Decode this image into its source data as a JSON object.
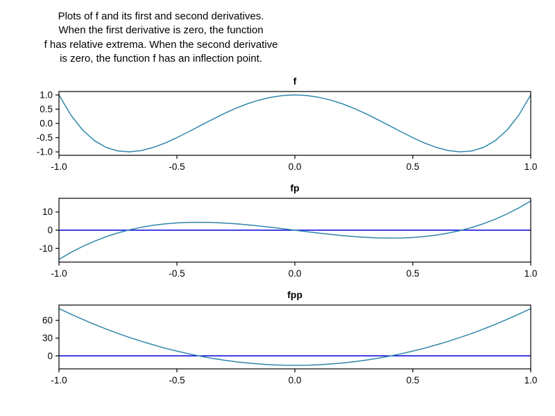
{
  "caption": {
    "lines": [
      "Plots of f and its first and second derivatives.",
      "When the first derivative is zero, the function",
      "f has relative extrema. When the second derivative",
      "is zero, the function f has an inflection point."
    ]
  },
  "colors": {
    "curve": "#2e86ab",
    "zero_line": "#0000dd",
    "frame": "#000000",
    "background": "#ffffff"
  },
  "chart_data": [
    {
      "type": "line",
      "title": "f",
      "xlabel": "",
      "ylabel": "",
      "legend": "none",
      "grid": false,
      "xlim": [
        -1,
        1
      ],
      "ylim": [
        -1.12,
        1.12
      ],
      "xticks": [
        -1,
        -0.5,
        0,
        0.5,
        1
      ],
      "xtick_labels": [
        "-1.0",
        "-0.5",
        "0.0",
        "0.5",
        "1.0"
      ],
      "yticks": [
        1,
        0.5,
        0,
        -0.5,
        -1
      ],
      "ytick_labels": [
        "1.0",
        "0.5",
        "0.0",
        "-0.5",
        "-1.0"
      ],
      "zero_line": false,
      "x": [
        -1,
        -0.95,
        -0.9,
        -0.85,
        -0.8,
        -0.75,
        -0.7,
        -0.65,
        -0.6,
        -0.55,
        -0.5,
        -0.45,
        -0.4,
        -0.35,
        -0.3,
        -0.25,
        -0.2,
        -0.15,
        -0.1,
        -0.05,
        0,
        0.05,
        0.1,
        0.15,
        0.2,
        0.25,
        0.3,
        0.35,
        0.4,
        0.45,
        0.5,
        0.55,
        0.6,
        0.65,
        0.7,
        0.75,
        0.8,
        0.85,
        0.9,
        0.95,
        1
      ],
      "y": [
        1,
        0.296,
        -0.231,
        -0.604,
        -0.843,
        -0.969,
        -0.999,
        -0.952,
        -0.843,
        -0.688,
        -0.5,
        -0.292,
        -0.075,
        0.14,
        0.345,
        0.531,
        0.693,
        0.824,
        0.921,
        0.98,
        1,
        0.98,
        0.921,
        0.824,
        0.693,
        0.531,
        0.345,
        0.14,
        -0.075,
        -0.292,
        -0.5,
        -0.688,
        -0.843,
        -0.952,
        -0.999,
        -0.969,
        -0.843,
        -0.604,
        -0.231,
        0.296,
        1
      ]
    },
    {
      "type": "line",
      "title": "fp",
      "xlabel": "",
      "ylabel": "",
      "legend": "none",
      "grid": false,
      "xlim": [
        -1,
        1
      ],
      "ylim": [
        -17.5,
        17.5
      ],
      "xticks": [
        -1,
        -0.5,
        0,
        0.5,
        1
      ],
      "xtick_labels": [
        "-1.0",
        "-0.5",
        "0.0",
        "0.5",
        "1.0"
      ],
      "yticks": [
        10,
        0,
        -10
      ],
      "ytick_labels": [
        "10",
        "0",
        "-10"
      ],
      "zero_line": true,
      "x": [
        -1,
        -0.95,
        -0.9,
        -0.85,
        -0.8,
        -0.75,
        -0.7,
        -0.65,
        -0.6,
        -0.55,
        -0.5,
        -0.45,
        -0.4,
        -0.35,
        -0.3,
        -0.25,
        -0.2,
        -0.15,
        -0.1,
        -0.05,
        0,
        0.05,
        0.1,
        0.15,
        0.2,
        0.25,
        0.3,
        0.35,
        0.4,
        0.45,
        0.5,
        0.55,
        0.6,
        0.65,
        0.7,
        0.75,
        0.8,
        0.85,
        0.9,
        0.95,
        1
      ],
      "y": [
        -16,
        -12.236,
        -8.928,
        -6.052,
        -3.584,
        -1.5,
        0.224,
        1.612,
        2.688,
        3.476,
        4,
        4.284,
        4.352,
        4.228,
        3.936,
        3.5,
        2.944,
        2.292,
        1.568,
        0.796,
        0,
        -0.796,
        -1.568,
        -2.292,
        -2.944,
        -3.5,
        -3.936,
        -4.228,
        -4.352,
        -4.284,
        -4,
        -3.476,
        -2.688,
        -1.612,
        -0.224,
        1.5,
        3.584,
        6.052,
        8.928,
        12.236,
        16
      ]
    },
    {
      "type": "line",
      "title": "fpp",
      "xlabel": "",
      "ylabel": "",
      "legend": "none",
      "grid": false,
      "xlim": [
        -1,
        1
      ],
      "ylim": [
        -22,
        86
      ],
      "xticks": [
        -1,
        -0.5,
        0,
        0.5,
        1
      ],
      "xtick_labels": [
        "-1.0",
        "-0.5",
        "0.0",
        "0.5",
        "1.0"
      ],
      "yticks": [
        60,
        30,
        0
      ],
      "ytick_labels": [
        "60",
        "30",
        "0"
      ],
      "zero_line": true,
      "x": [
        -1,
        -0.95,
        -0.9,
        -0.85,
        -0.8,
        -0.75,
        -0.7,
        -0.65,
        -0.6,
        -0.55,
        -0.5,
        -0.45,
        -0.4,
        -0.35,
        -0.3,
        -0.25,
        -0.2,
        -0.15,
        -0.1,
        -0.05,
        0,
        0.05,
        0.1,
        0.15,
        0.2,
        0.25,
        0.3,
        0.35,
        0.4,
        0.45,
        0.5,
        0.55,
        0.6,
        0.65,
        0.7,
        0.75,
        0.8,
        0.85,
        0.9,
        0.95,
        1
      ],
      "y": [
        80,
        70.64,
        61.76,
        53.36,
        45.44,
        38,
        31.04,
        24.56,
        18.56,
        13.04,
        8,
        3.44,
        -0.64,
        -4.24,
        -7.36,
        -10,
        -12.16,
        -13.84,
        -15.04,
        -15.76,
        -16,
        -15.76,
        -15.04,
        -13.84,
        -12.16,
        -10,
        -7.36,
        -4.24,
        -0.64,
        3.44,
        8,
        13.04,
        18.56,
        24.56,
        31.04,
        38,
        45.44,
        53.36,
        61.76,
        70.64,
        80
      ]
    }
  ]
}
